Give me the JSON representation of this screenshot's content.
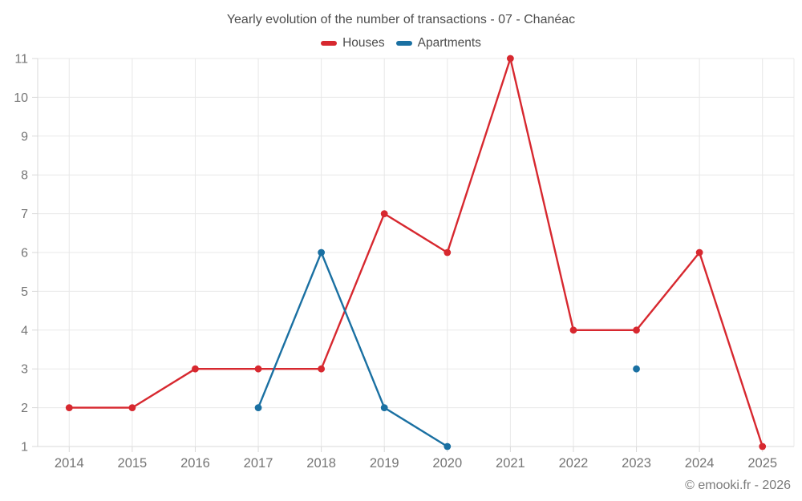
{
  "chart": {
    "title": "Yearly evolution of the number of transactions - 07 - Chanéac",
    "legend": {
      "houses_label": "Houses",
      "apartments_label": "Apartments"
    },
    "footer": "© emooki.fr - 2026",
    "colors": {
      "houses": "#d7282f",
      "apartments": "#1a70a2",
      "grid": "#e8e8e8",
      "axis_line": "#d9d9d9",
      "axis_text": "#757575",
      "title_text": "#4d4d4d"
    }
  },
  "chart_data": {
    "type": "line",
    "title": "Yearly evolution of the number of transactions - 07 - Chanéac",
    "categories": [
      "2014",
      "2015",
      "2016",
      "2017",
      "2018",
      "2019",
      "2020",
      "2021",
      "2022",
      "2023",
      "2024",
      "2025"
    ],
    "series": [
      {
        "name": "Houses",
        "color": "#d7282f",
        "values": [
          2,
          2,
          3,
          3,
          3,
          7,
          6,
          11,
          4,
          4,
          6,
          1
        ]
      },
      {
        "name": "Apartments",
        "color": "#1a70a2",
        "values": [
          null,
          null,
          null,
          2,
          6,
          2,
          1,
          null,
          null,
          3,
          null,
          null
        ]
      }
    ],
    "xlabel": "",
    "ylabel": "",
    "ylim": [
      1,
      11
    ],
    "yticks": [
      1,
      2,
      3,
      4,
      5,
      6,
      7,
      8,
      9,
      10,
      11
    ],
    "grid": true,
    "legend_position": "top",
    "annotation": "© emooki.fr - 2026"
  }
}
